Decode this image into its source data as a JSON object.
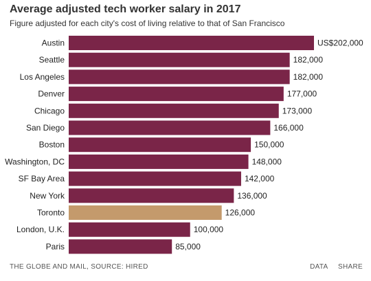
{
  "chart_data": {
    "type": "bar",
    "orientation": "horizontal",
    "title": "Average adjusted tech worker salary in 2017",
    "subtitle": "Figure adjusted for each city's cost of living relative to that of San Francisco",
    "categories": [
      "Austin",
      "Seattle",
      "Los Angeles",
      "Denver",
      "Chicago",
      "San Diego",
      "Boston",
      "Washington, DC",
      "SF Bay Area",
      "New York",
      "Toronto",
      "London, U.K.",
      "Paris"
    ],
    "values": [
      202000,
      182000,
      182000,
      177000,
      173000,
      166000,
      150000,
      148000,
      142000,
      136000,
      126000,
      100000,
      85000
    ],
    "value_labels": [
      "US$202,000",
      "182,000",
      "182,000",
      "177,000",
      "173,000",
      "166,000",
      "150,000",
      "148,000",
      "142,000",
      "136,000",
      "126,000",
      "100,000",
      "85,000"
    ],
    "highlight_index": 10,
    "xlim": [
      0,
      202000
    ],
    "grid": false,
    "colors": {
      "bar": "#7a2548",
      "highlight": "#c49a6c"
    }
  },
  "footer": {
    "source": "THE GLOBE AND MAIL, SOURCE: HIRED",
    "data_label": "DATA",
    "share_label": "SHARE"
  }
}
